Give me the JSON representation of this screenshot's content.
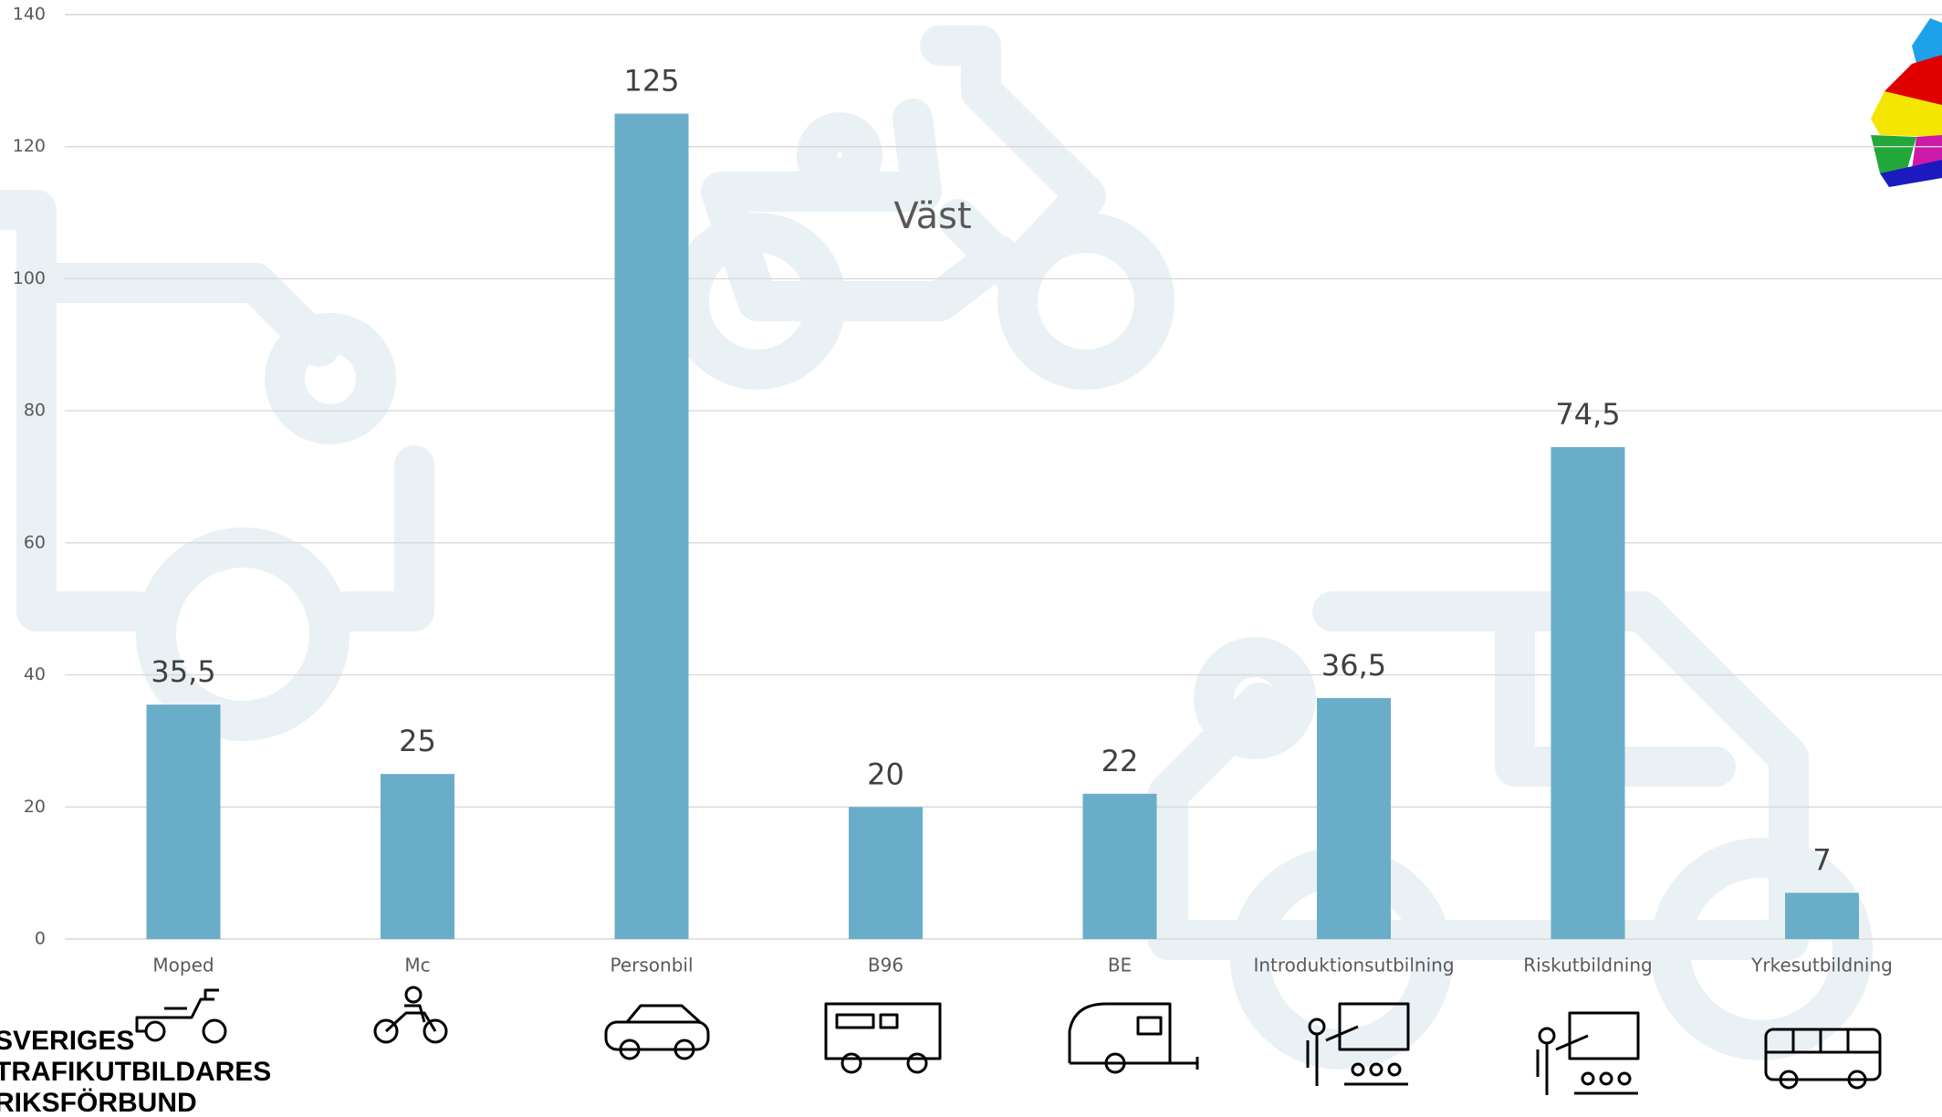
{
  "chart_data": {
    "type": "bar",
    "title": "Väst",
    "categories": [
      "Moped",
      "Mc",
      "Personbil",
      "B96",
      "BE",
      "Introduktionsutbilning",
      "Riskutbildning",
      "Yrkesutbildning"
    ],
    "values": [
      35.5,
      25,
      125,
      20,
      22,
      36.5,
      74.5,
      7
    ],
    "value_labels": [
      "35,5",
      "25",
      "125",
      "20",
      "22",
      "36,5",
      "74,5",
      "7"
    ],
    "color": "#6aadc8",
    "ylim": [
      0,
      140
    ],
    "yticks": [
      0,
      20,
      40,
      60,
      80,
      100,
      120,
      140
    ],
    "grid": true
  },
  "logo": [
    "SVERIGES",
    "TRAFIKUTBILDARES",
    "RIKSFÖRBUND"
  ]
}
